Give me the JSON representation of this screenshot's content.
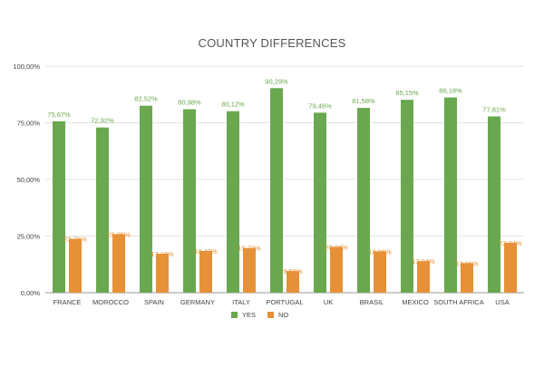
{
  "chart_data": {
    "type": "bar",
    "title": "COUNTRY DIFFERENCES",
    "categories": [
      "FRANCE",
      "MOROCCO",
      "SPAIN",
      "GERMANY",
      "ITALY",
      "PORTUGAL",
      "UK",
      "BRASIL",
      "MEXICO",
      "SOUTH AFRICA",
      "USA"
    ],
    "series": [
      {
        "name": "YES",
        "color": "#6aa84f",
        "values": [
          75.67,
          72.92,
          82.52,
          80.98,
          80.12,
          90.29,
          79.46,
          81.58,
          85.15,
          86.18,
          77.81
        ],
        "labels": [
          "75,67%",
          "72,92%",
          "82,52%",
          "80,98%",
          "80,12%",
          "90,29%",
          "79,46%",
          "81,58%",
          "85,15%",
          "86,18%",
          "77,81%"
        ]
      },
      {
        "name": "NO",
        "color": "#e69138",
        "values": [
          23.76,
          25.85,
          17.19,
          18.4,
          19.72,
          9.56,
          20.24,
          18.26,
          13.94,
          13.06,
          22.04
        ],
        "labels": [
          "23,76%",
          "25,85%",
          "17,19%",
          "18,40%",
          "19,72%",
          "9,56%",
          "20,24%",
          "18,26%",
          "13,94%",
          "13,06%",
          "22,04%"
        ]
      }
    ],
    "ylim": [
      0,
      100
    ],
    "yticks": [
      0,
      25,
      50,
      75,
      100
    ],
    "ytick_labels": [
      "0,00%",
      "25,00%",
      "50,00%",
      "75,00%",
      "100,00%"
    ],
    "grid": true,
    "legend": "bottom"
  }
}
